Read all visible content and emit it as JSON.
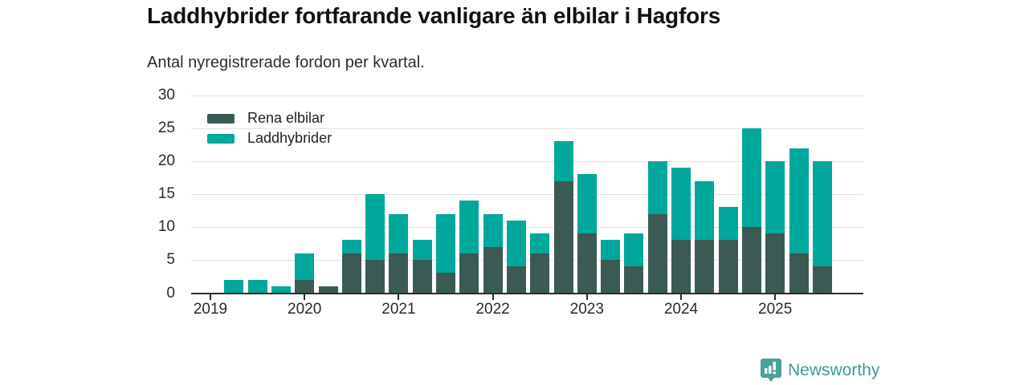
{
  "header": {
    "title": "Laddhybrider fortfarande vanligare än elbilar i Hagfors",
    "subtitle": "Antal nyregistrerade fordon per kvartal."
  },
  "legend": [
    {
      "label": "Rena elbilar",
      "color": "#3c5a54"
    },
    {
      "label": "Laddhybrider",
      "color": "#00a79b"
    }
  ],
  "footer": {
    "brand": "Newsworthy",
    "brand_color": "#3f9a94",
    "logo_icon": "bar-chart-badge-icon"
  },
  "chart_data": {
    "type": "bar",
    "stacked": true,
    "title": "Laddhybrider fortfarande vanligare än elbilar i Hagfors",
    "subtitle": "Antal nyregistrerade fordon per kvartal.",
    "xlabel": "",
    "ylabel": "",
    "ylim": [
      0,
      30
    ],
    "yticks": [
      0,
      5,
      10,
      15,
      20,
      25,
      30
    ],
    "grid": "horizontal",
    "legend_position": "top-left-inside",
    "categories": [
      "2019 Q1",
      "2019 Q2",
      "2019 Q3",
      "2019 Q4",
      "2020 Q1",
      "2020 Q2",
      "2020 Q3",
      "2020 Q4",
      "2021 Q1",
      "2021 Q2",
      "2021 Q3",
      "2021 Q4",
      "2022 Q1",
      "2022 Q2",
      "2022 Q3",
      "2022 Q4",
      "2023 Q1",
      "2023 Q2",
      "2023 Q3",
      "2023 Q4",
      "2024 Q1",
      "2024 Q2",
      "2024 Q3",
      "2024 Q4",
      "2025 Q1",
      "2025 Q2",
      "2025 Q3"
    ],
    "year_tick_labels": [
      "2019",
      "2020",
      "2021",
      "2022",
      "2023",
      "2024",
      "2025"
    ],
    "series": [
      {
        "name": "Rena elbilar",
        "color": "#3c5a54",
        "values": [
          0,
          0,
          0,
          0,
          2,
          1,
          6,
          5,
          6,
          5,
          3,
          6,
          7,
          4,
          6,
          17,
          9,
          5,
          4,
          12,
          8,
          8,
          8,
          10,
          9,
          6,
          4
        ]
      },
      {
        "name": "Laddhybrider",
        "color": "#00a79b",
        "values": [
          0,
          2,
          2,
          1,
          4,
          0,
          2,
          10,
          6,
          3,
          9,
          8,
          5,
          7,
          3,
          6,
          9,
          3,
          5,
          8,
          11,
          9,
          5,
          15,
          11,
          16,
          16
        ]
      }
    ],
    "totals": [
      0,
      2,
      2,
      1,
      6,
      1,
      8,
      15,
      12,
      8,
      12,
      14,
      12,
      11,
      9,
      23,
      18,
      8,
      9,
      20,
      19,
      17,
      13,
      25,
      20,
      22,
      20
    ]
  }
}
